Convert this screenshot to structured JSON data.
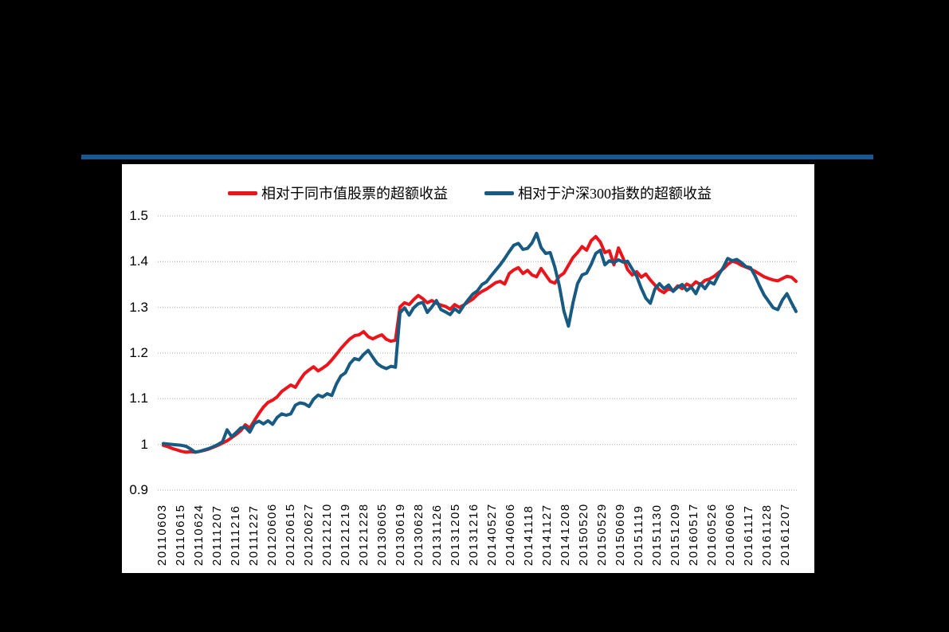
{
  "page": {
    "background": "#000000"
  },
  "top_rule": {
    "color": "#1B5791"
  },
  "chart_data": {
    "type": "line",
    "title": "",
    "xlabel": "",
    "ylabel": "",
    "ylim": [
      0.9,
      1.5
    ],
    "grid": "dotted-horizontal",
    "legend_position": "top-center",
    "panel_background": "#FFFFFF",
    "gridline_color": "#A6A6A6",
    "legend": [
      {
        "label": "相对于同市值股票的超额收益",
        "color": "#E9151B"
      },
      {
        "label": "相对于沪深300指数的超额收益",
        "color": "#175A82"
      }
    ],
    "yticks": {
      "values": [
        0.9,
        1.0,
        1.1,
        1.2,
        1.3,
        1.4,
        1.5
      ],
      "labels": [
        "0.9",
        "1",
        "1.1",
        "1.2",
        "1.3",
        "1.4",
        "1.5"
      ]
    },
    "x_tick_labels": [
      "20110603",
      "20110615",
      "20110624",
      "20111207",
      "20111216",
      "20111227",
      "20120606",
      "20120615",
      "20120627",
      "20121210",
      "20121219",
      "20121228",
      "20130605",
      "20130619",
      "20130628",
      "20131126",
      "20131205",
      "20131216",
      "20140527",
      "20140606",
      "20141118",
      "20141127",
      "20141208",
      "20150520",
      "20150529",
      "20150609",
      "20151119",
      "20151130",
      "20151209",
      "20160517",
      "20160526",
      "20160606",
      "20161117",
      "20161128",
      "20161207"
    ],
    "series": [
      {
        "name": "相对于同市值股票的超额收益",
        "color": "#E9151B",
        "values": [
          0.998,
          0.995,
          0.991,
          0.988,
          0.985,
          0.983,
          0.984,
          0.983,
          0.985,
          0.987,
          0.99,
          0.994,
          0.998,
          1.003,
          1.008,
          1.015,
          1.022,
          1.03,
          1.043,
          1.036,
          1.052,
          1.068,
          1.082,
          1.092,
          1.097,
          1.104,
          1.116,
          1.123,
          1.13,
          1.125,
          1.141,
          1.155,
          1.163,
          1.17,
          1.161,
          1.167,
          1.174,
          1.185,
          1.197,
          1.21,
          1.221,
          1.231,
          1.238,
          1.24,
          1.247,
          1.236,
          1.231,
          1.236,
          1.24,
          1.23,
          1.226,
          1.228,
          1.301,
          1.31,
          1.306,
          1.317,
          1.326,
          1.319,
          1.31,
          1.315,
          1.309,
          1.305,
          1.302,
          1.296,
          1.306,
          1.3,
          1.305,
          1.312,
          1.318,
          1.328,
          1.335,
          1.34,
          1.347,
          1.354,
          1.357,
          1.351,
          1.374,
          1.382,
          1.387,
          1.374,
          1.381,
          1.371,
          1.367,
          1.385,
          1.371,
          1.357,
          1.353,
          1.368,
          1.375,
          1.392,
          1.409,
          1.42,
          1.433,
          1.425,
          1.446,
          1.455,
          1.443,
          1.42,
          1.424,
          1.393,
          1.43,
          1.408,
          1.383,
          1.371,
          1.378,
          1.366,
          1.373,
          1.36,
          1.349,
          1.338,
          1.332,
          1.341,
          1.336,
          1.347,
          1.341,
          1.351,
          1.346,
          1.356,
          1.35,
          1.359,
          1.362,
          1.368,
          1.376,
          1.384,
          1.394,
          1.401,
          1.398,
          1.392,
          1.388,
          1.384,
          1.379,
          1.373,
          1.367,
          1.363,
          1.36,
          1.358,
          1.363,
          1.368,
          1.366,
          1.357
        ]
      },
      {
        "name": "相对于沪深300指数的超额收益",
        "color": "#175A82",
        "values": [
          1.002,
          1.001,
          1.0,
          0.999,
          0.998,
          0.996,
          0.99,
          0.983,
          0.985,
          0.988,
          0.991,
          0.995,
          1.0,
          1.006,
          1.032,
          1.017,
          1.026,
          1.036,
          1.038,
          1.027,
          1.046,
          1.051,
          1.045,
          1.052,
          1.044,
          1.059,
          1.067,
          1.064,
          1.067,
          1.086,
          1.091,
          1.089,
          1.083,
          1.099,
          1.108,
          1.104,
          1.111,
          1.107,
          1.132,
          1.15,
          1.157,
          1.177,
          1.188,
          1.185,
          1.197,
          1.206,
          1.191,
          1.177,
          1.17,
          1.166,
          1.171,
          1.169,
          1.288,
          1.299,
          1.283,
          1.299,
          1.308,
          1.311,
          1.289,
          1.301,
          1.315,
          1.295,
          1.29,
          1.284,
          1.297,
          1.289,
          1.304,
          1.317,
          1.329,
          1.336,
          1.35,
          1.356,
          1.369,
          1.381,
          1.393,
          1.407,
          1.422,
          1.436,
          1.44,
          1.427,
          1.429,
          1.441,
          1.462,
          1.431,
          1.418,
          1.42,
          1.388,
          1.347,
          1.292,
          1.259,
          1.31,
          1.352,
          1.371,
          1.375,
          1.394,
          1.418,
          1.425,
          1.393,
          1.402,
          1.398,
          1.404,
          1.399,
          1.401,
          1.384,
          1.368,
          1.342,
          1.32,
          1.309,
          1.34,
          1.352,
          1.341,
          1.349,
          1.335,
          1.344,
          1.35,
          1.337,
          1.344,
          1.33,
          1.352,
          1.341,
          1.356,
          1.351,
          1.371,
          1.387,
          1.407,
          1.402,
          1.405,
          1.398,
          1.389,
          1.387,
          1.369,
          1.347,
          1.327,
          1.313,
          1.299,
          1.295,
          1.316,
          1.33,
          1.31,
          1.291
        ]
      }
    ]
  }
}
